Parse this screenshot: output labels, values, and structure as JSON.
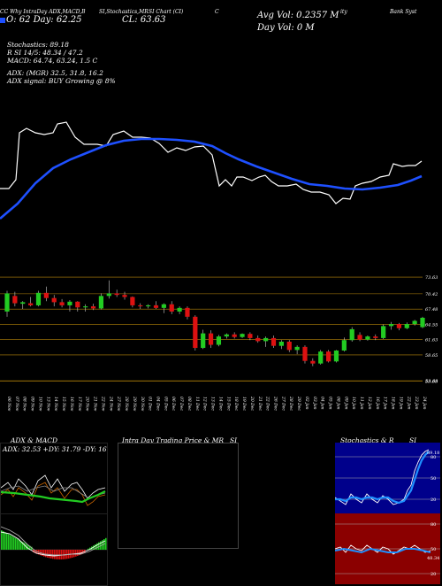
{
  "header": {
    "line1_left": "CC Why IntraDay ADX,MACD,B",
    "line1_mid": "SI,Stochastics,MR",
    "line1_right_a": "SI Chart (",
    "line1_right_b": "CI",
    "line1_right_c": ")",
    "line1_far": "C",
    "line1_far2": "ity",
    "line1_far3": "Bank Syst",
    "open_label": "O: 62 Day: 62.25",
    "close_label": "CL: 63.63",
    "avg_vol": "Avg Vol: 0.2357 M",
    "day_vol": "Day Vol: 0   M"
  },
  "indicators": {
    "stochastics": "Stochastics: 89.18",
    "rsi": "R          SI 14/5: 48.34 / 47.2",
    "macd": "MACD: 64.74,  63.24,  1.5 C",
    "adx": "ADX:                   (MGR) 32.5,  31.8,  16.2",
    "adx_signal": "ADX  signal:                  BUY Growing @ 8%"
  },
  "price_axis": [
    "73.63",
    "70.42",
    "67.48",
    "64.55",
    "61.63",
    "58.65",
    "53.68",
    "53.63"
  ],
  "dates": [
    "06 Nov",
    "07 Nov",
    "08 Nov",
    "09 Nov",
    "10 Nov",
    "13 Nov",
    "14 Nov",
    "15 Nov",
    "16 Nov",
    "17 Nov",
    "20 Nov",
    "21 Nov",
    "22 Nov",
    "24 Nov",
    "27 Nov",
    "28 Nov",
    "29 Nov",
    "30 Nov",
    "01 Dec",
    "04 Dec",
    "05 Dec",
    "06 Dec",
    "07 Dec",
    "08 Dec",
    "11 Dec",
    "12 Dec",
    "13 Dec",
    "14 Dec",
    "15 Dec",
    "18 Dec",
    "19 Dec",
    "20 Dec",
    "21 Dec",
    "22 Dec",
    "26 Dec",
    "27 Dec",
    "28 Dec",
    "29 Dec",
    "02 Jan",
    "03 Jan",
    "04 Jan",
    "05 Jan",
    "08 Jan",
    "09 Jan",
    "10 Jan",
    "11 Jan",
    "12 Jan",
    "16 Jan",
    "17 Jan",
    "18 Jan",
    "19 Jan",
    "22 Jan",
    "23 Jan",
    "24 Jan"
  ],
  "bottom_panels": {
    "adx_title": "ADX  & MACD",
    "adx_values": "ADX: 32.53  +DY: 31.79  -DY: 16.18",
    "intraday_title": "Intra  Day Trading Price  & MR",
    "intraday_title2": "SI",
    "stoch_title": "Stochastics & R",
    "stoch_title2": "SI",
    "stoch_axis": [
      "80",
      "50",
      "20"
    ],
    "rsi_axis": [
      "80",
      "50",
      "20"
    ],
    "stoch_value": "89.18",
    "rsi_value": "48.34"
  },
  "colors": {
    "background": "#000000",
    "ma_line": "#1e50ff",
    "price_line": "#ffffff",
    "bull": "#22cc22",
    "bear": "#dd1111",
    "grid_level": "#b8860b",
    "rsi_bg": "#8b0000"
  },
  "chart_data": {
    "type": "candlestick",
    "categories": [
      "06 Nov",
      "07 Nov",
      "08 Nov",
      "09 Nov",
      "10 Nov",
      "13 Nov",
      "14 Nov",
      "15 Nov",
      "16 Nov",
      "17 Nov",
      "20 Nov",
      "21 Nov",
      "22 Nov",
      "24 Nov",
      "27 Nov",
      "28 Nov",
      "29 Nov",
      "30 Nov",
      "01 Dec",
      "04 Dec",
      "05 Dec",
      "06 Dec",
      "07 Dec",
      "08 Dec",
      "11 Dec",
      "12 Dec",
      "13 Dec",
      "14 Dec",
      "15 Dec",
      "18 Dec",
      "19 Dec",
      "20 Dec",
      "21 Dec",
      "22 Dec",
      "26 Dec",
      "27 Dec",
      "28 Dec",
      "29 Dec",
      "02 Jan",
      "03 Jan",
      "04 Jan",
      "05 Jan",
      "08 Jan",
      "09 Jan",
      "10 Jan",
      "11 Jan",
      "12 Jan",
      "16 Jan",
      "17 Jan",
      "18 Jan",
      "19 Jan",
      "22 Jan",
      "23 Jan",
      "24 Jan"
    ],
    "ohlc": [
      [
        67.0,
        71.0,
        66.0,
        70.5
      ],
      [
        70.0,
        70.8,
        68.0,
        68.6
      ],
      [
        68.5,
        69.0,
        67.5,
        68.8
      ],
      [
        68.6,
        69.8,
        68.0,
        68.2
      ],
      [
        68.2,
        71.0,
        68.0,
        70.6
      ],
      [
        70.6,
        71.8,
        69.0,
        69.6
      ],
      [
        69.6,
        70.2,
        68.0,
        68.8
      ],
      [
        68.8,
        69.4,
        67.8,
        68.2
      ],
      [
        68.2,
        69.2,
        67.0,
        68.9
      ],
      [
        68.9,
        69.0,
        67.0,
        67.8
      ],
      [
        67.8,
        68.4,
        67.0,
        68.0
      ],
      [
        68.0,
        68.5,
        67.3,
        67.6
      ],
      [
        67.6,
        70.5,
        67.4,
        70.0
      ],
      [
        70.0,
        73.0,
        69.5,
        70.5
      ],
      [
        70.5,
        71.2,
        69.8,
        70.2
      ],
      [
        70.2,
        70.8,
        69.3,
        69.8
      ],
      [
        69.8,
        69.9,
        67.8,
        68.2
      ],
      [
        68.2,
        68.6,
        67.5,
        68.0
      ],
      [
        68.0,
        68.4,
        67.6,
        68.2
      ],
      [
        68.2,
        69.0,
        67.5,
        67.7
      ],
      [
        67.7,
        68.6,
        66.7,
        68.4
      ],
      [
        68.4,
        69.0,
        66.5,
        67.0
      ],
      [
        67.0,
        68.0,
        66.5,
        67.7
      ],
      [
        67.7,
        68.0,
        65.5,
        66.0
      ],
      [
        66.0,
        66.3,
        59.5,
        60.0
      ],
      [
        60.0,
        63.5,
        59.8,
        62.8
      ],
      [
        62.8,
        63.4,
        60.0,
        60.6
      ],
      [
        60.6,
        62.5,
        60.3,
        62.2
      ],
      [
        62.2,
        62.8,
        61.8,
        62.6
      ],
      [
        62.6,
        63.0,
        61.8,
        62.1
      ],
      [
        62.1,
        62.8,
        61.9,
        62.7
      ],
      [
        62.7,
        63.0,
        61.5,
        61.9
      ],
      [
        61.9,
        62.4,
        61.0,
        61.3
      ],
      [
        61.3,
        62.2,
        60.2,
        61.9
      ],
      [
        61.9,
        62.4,
        60.0,
        60.4
      ],
      [
        60.4,
        61.5,
        59.8,
        61.2
      ],
      [
        61.2,
        61.5,
        59.2,
        59.6
      ],
      [
        59.6,
        60.5,
        58.8,
        60.2
      ],
      [
        60.2,
        60.5,
        57.0,
        57.5
      ],
      [
        57.5,
        58.0,
        56.5,
        57.0
      ],
      [
        57.0,
        59.6,
        56.8,
        59.3
      ],
      [
        59.3,
        59.6,
        57.2,
        57.4
      ],
      [
        57.4,
        59.6,
        57.2,
        59.5
      ],
      [
        59.5,
        62.0,
        59.3,
        61.5
      ],
      [
        61.5,
        64.0,
        61.2,
        63.6
      ],
      [
        62.5,
        63.0,
        61.3,
        61.6
      ],
      [
        61.6,
        62.4,
        61.4,
        62.2
      ],
      [
        62.2,
        62.6,
        61.5,
        61.9
      ],
      [
        61.9,
        64.5,
        61.7,
        64.2
      ],
      [
        64.2,
        65.0,
        63.5,
        64.6
      ],
      [
        64.6,
        64.8,
        63.4,
        63.8
      ],
      [
        63.8,
        64.9,
        63.6,
        64.6
      ],
      [
        64.6,
        65.4,
        64.3,
        65.2
      ],
      [
        64.0,
        66.0,
        63.8,
        65.8
      ]
    ],
    "levels": [
      73.63,
      70.42,
      67.48,
      64.55,
      61.63,
      58.65,
      53.68,
      53.63
    ],
    "ylim": [
      52,
      75
    ]
  }
}
